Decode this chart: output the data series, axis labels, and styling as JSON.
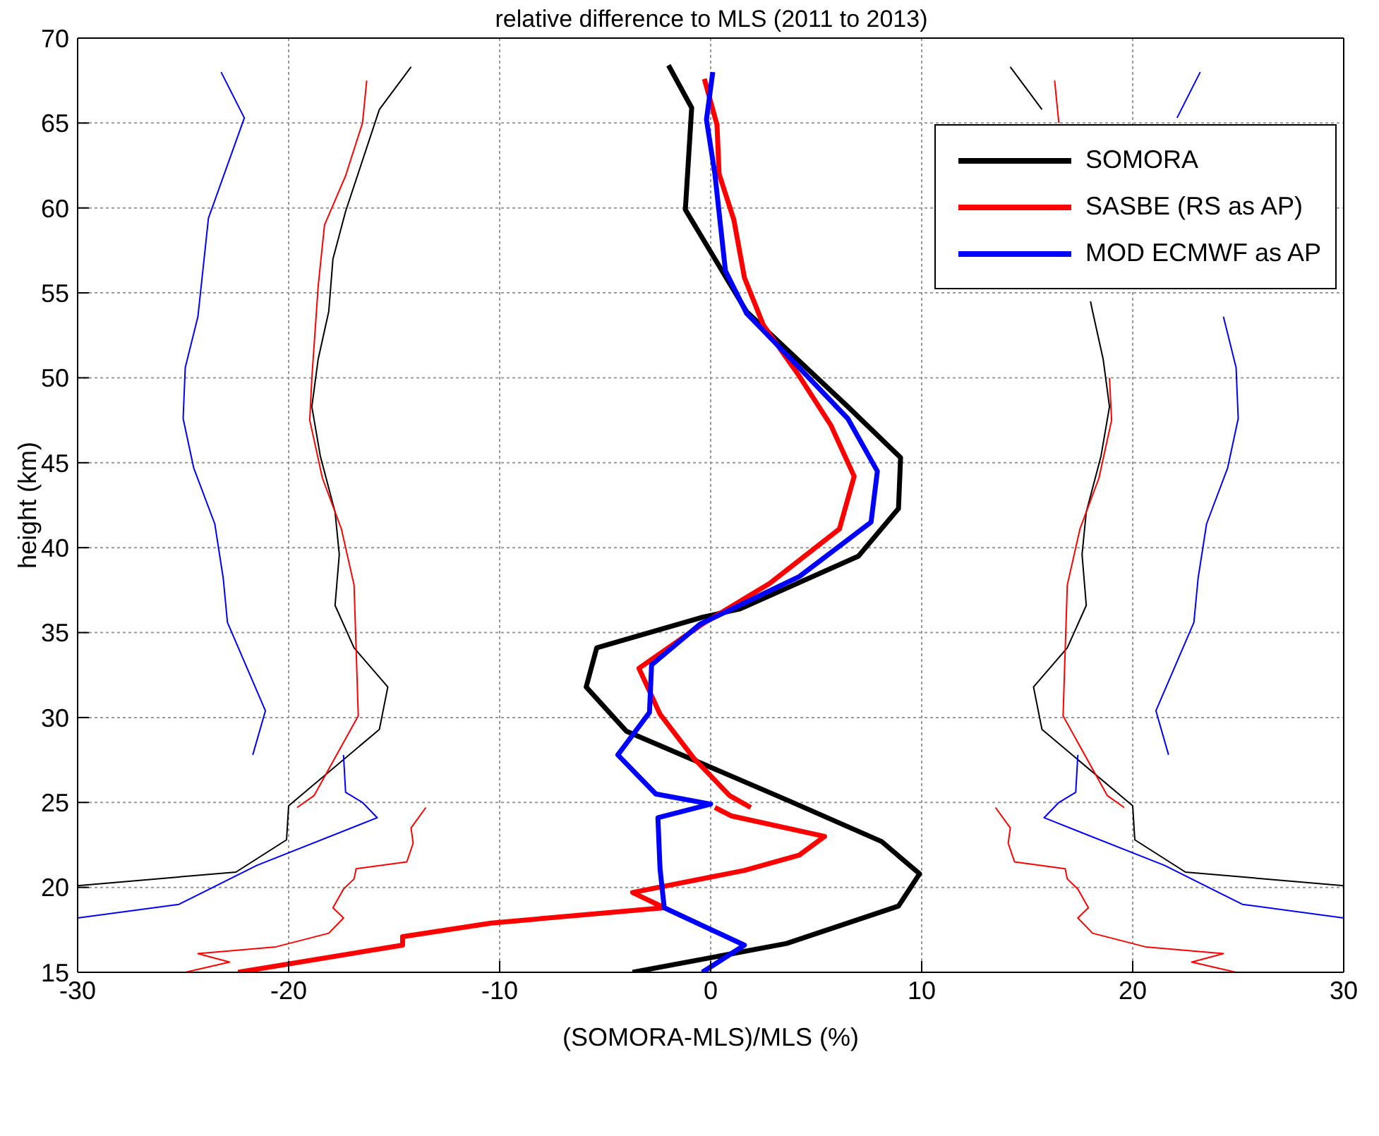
{
  "chart_data": {
    "type": "line",
    "title": "relative difference to MLS (2011 to 2013)",
    "xlabel": "(SOMORA-MLS)/MLS (%)",
    "ylabel": "height (km)",
    "xlim": [
      -30,
      30
    ],
    "xticks": [
      -30,
      -20,
      -10,
      0,
      10,
      20,
      30
    ],
    "ylim": [
      15,
      70
    ],
    "yticks": [
      15,
      20,
      25,
      30,
      35,
      40,
      45,
      50,
      55,
      60,
      65,
      70
    ],
    "grid": true,
    "legend": "top right",
    "line_style": "solid",
    "marker": "none",
    "series": [
      {
        "color": "#000000",
        "x": [
          -14.2,
          -15.7,
          -17.3,
          -17.9,
          -18.1,
          -18.6,
          -18.9,
          -18.5,
          -17.8,
          -17.6,
          -17.8,
          -16.9,
          -15.3,
          -15.7,
          -20.0,
          -20.1,
          -22.5,
          -30
        ],
        "values": [
          68.3,
          65.8,
          59.8,
          57.0,
          53.9,
          51.1,
          48.3,
          45.4,
          42.1,
          39.6,
          36.6,
          34.1,
          31.8,
          29.3,
          24.8,
          22.8,
          20.9,
          20.1
        ]
      },
      {
        "color": "#000000",
        "x": [
          14.2,
          15.7,
          null,
          18.0,
          18.1,
          18.6,
          18.9,
          18.5,
          17.8,
          17.6,
          17.8,
          16.9,
          15.3,
          15.7,
          20.0,
          20.1,
          22.5,
          30
        ],
        "values": [
          68.3,
          65.8,
          null,
          54.5,
          53.9,
          51.1,
          48.3,
          45.4,
          42.1,
          39.6,
          36.6,
          34.1,
          31.8,
          29.3,
          24.8,
          22.8,
          20.9,
          20.1
        ]
      },
      {
        "color": "#ff0000",
        "x": [
          -16.3,
          -16.5,
          -17.3,
          -18.3,
          -18.6,
          -18.9,
          -19.0,
          -18.4,
          -17.5,
          -16.9,
          -16.7,
          -18.8,
          -19.6,
          null,
          -13.5,
          -14.2,
          -14.1,
          -14.4,
          -16.8,
          -16.9,
          -17.4,
          -17.9,
          -17.4,
          -18.1,
          -20.6,
          -24.3,
          -22.8,
          -24.9
        ],
        "values": [
          67.5,
          65.0,
          61.9,
          59.0,
          55.4,
          50.0,
          47.5,
          44.1,
          41.1,
          37.8,
          30.1,
          25.4,
          24.7,
          null,
          24.7,
          23.5,
          22.6,
          21.5,
          21.1,
          20.5,
          19.9,
          18.8,
          18.2,
          17.3,
          16.5,
          16.1,
          15.6,
          15.0
        ]
      },
      {
        "color": "#ff0000",
        "x": [
          16.3,
          16.5,
          null,
          null,
          null,
          18.9,
          19.0,
          18.4,
          17.5,
          16.9,
          16.7,
          18.8,
          19.6,
          null,
          13.5,
          14.2,
          14.1,
          14.4,
          16.8,
          16.9,
          17.4,
          17.9,
          17.4,
          18.1,
          20.6,
          24.3,
          22.8,
          24.9
        ],
        "values": [
          67.5,
          65.0,
          null,
          null,
          null,
          50.0,
          47.5,
          44.1,
          41.1,
          37.8,
          30.1,
          25.4,
          24.7,
          null,
          24.7,
          23.5,
          22.6,
          21.5,
          21.1,
          20.5,
          19.9,
          18.8,
          18.2,
          17.3,
          16.5,
          16.1,
          15.6,
          15.0
        ]
      },
      {
        "color": "#0000ff",
        "x": [
          -23.2,
          -22.1,
          -23.8,
          -24.3,
          -24.9,
          -25.0,
          -24.5,
          -23.5,
          -23.1,
          -22.9,
          -21.1,
          -21.7,
          null,
          -17.4,
          -17.3,
          -16.5,
          -15.8,
          -21.5,
          -25.2,
          -30
        ],
        "values": [
          68.0,
          65.3,
          59.4,
          53.6,
          50.6,
          47.6,
          44.7,
          41.4,
          38.2,
          35.6,
          30.4,
          27.8,
          null,
          27.8,
          25.6,
          25.0,
          24.1,
          21.3,
          19.0,
          18.2
        ]
      },
      {
        "color": "#0000ff",
        "x": [
          23.2,
          22.1,
          null,
          24.3,
          24.9,
          25.0,
          24.5,
          23.5,
          23.1,
          22.9,
          21.1,
          21.7,
          null,
          17.4,
          17.3,
          16.5,
          15.8,
          21.5,
          25.2,
          30
        ],
        "values": [
          68.0,
          65.3,
          null,
          53.6,
          50.6,
          47.6,
          44.7,
          41.4,
          38.2,
          35.6,
          30.4,
          27.8,
          null,
          27.8,
          25.6,
          25.0,
          24.1,
          21.3,
          19.0,
          18.2
        ]
      },
      {
        "name": "SOMORA",
        "color": "#000000",
        "x": [
          -2.0,
          -0.9,
          -1.2,
          1.7,
          6.5,
          9.0,
          8.9,
          7.0,
          1.4,
          -0.4,
          -5.4,
          -5.9,
          -4.0,
          3.7,
          8.1,
          9.9,
          8.9,
          3.6,
          -3.7
        ],
        "values": [
          68.4,
          65.9,
          59.9,
          53.9,
          48.3,
          45.3,
          42.3,
          39.5,
          36.4,
          35.9,
          34.1,
          31.8,
          29.2,
          25.1,
          22.7,
          20.8,
          18.9,
          16.7,
          15.0
        ]
      },
      {
        "name": "SASBE (RS as AP)",
        "color": "#ff0000",
        "x": [
          -0.3,
          0.3,
          0.4,
          1.1,
          1.6,
          2.5,
          4.2,
          5.7,
          6.8,
          6.1,
          2.8,
          -0.4,
          -3.4,
          -2.4,
          -0.8,
          0.9,
          1.9,
          null,
          0.2,
          1.0,
          5.4,
          4.2,
          1.6,
          -3.7,
          -2.2,
          -10.4,
          -14.6,
          -14.6,
          -22.4
        ],
        "values": [
          67.6,
          64.9,
          62.0,
          59.3,
          55.9,
          53.1,
          50.1,
          47.2,
          44.2,
          41.1,
          37.9,
          35.5,
          32.9,
          30.2,
          27.6,
          25.4,
          24.7,
          null,
          24.7,
          24.2,
          23.0,
          21.9,
          21.0,
          19.7,
          18.8,
          17.9,
          17.1,
          16.6,
          15.0
        ]
      },
      {
        "name": "MOD ECMWF as AP",
        "color": "#0000ff",
        "x": [
          0.1,
          -0.2,
          0.2,
          0.7,
          1.7,
          3.5,
          6.5,
          7.9,
          7.6,
          4.2,
          -0.5,
          -2.8,
          -2.9,
          -4.4,
          -2.6,
          0.0,
          -2.5,
          -2.4,
          -2.2,
          1.6,
          -0.4
        ],
        "values": [
          68.0,
          65.2,
          62.0,
          56.3,
          53.8,
          51.5,
          47.6,
          44.5,
          41.5,
          38.3,
          35.5,
          33.1,
          30.3,
          27.8,
          25.5,
          24.9,
          24.1,
          21.1,
          18.8,
          16.6,
          15.0
        ]
      }
    ]
  }
}
